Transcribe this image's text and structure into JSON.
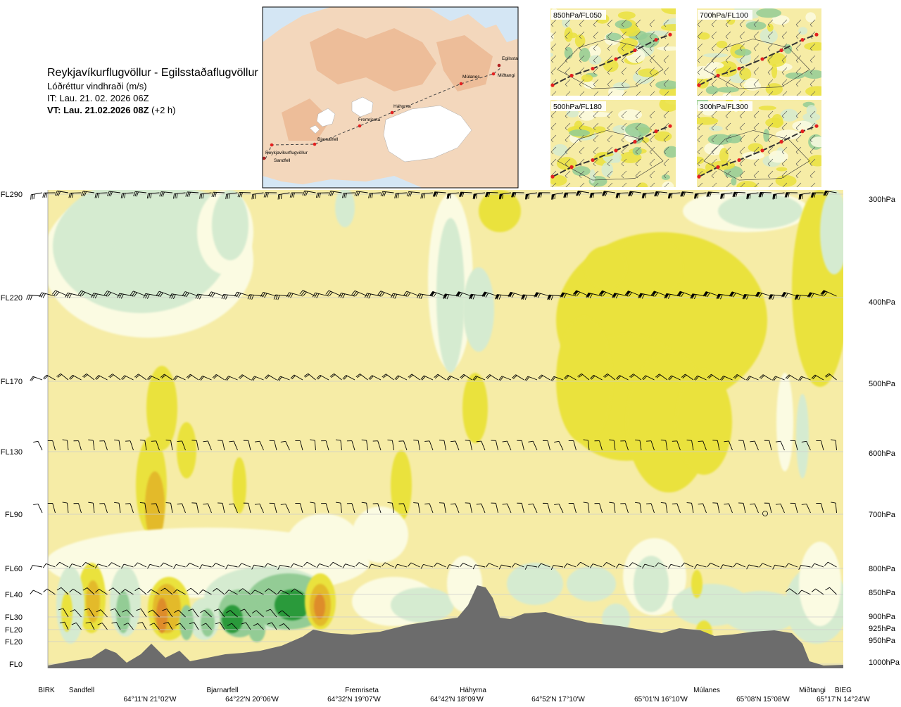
{
  "header": {
    "route_title": "Reykjavíkurflugvöllur - Egilsstaðaflugvöllur",
    "variable": "Lóðréttur vindhraði (m/s)",
    "issue_time": "IT: Lau. 21. 02. 2026 06Z",
    "valid_time_bold": "VT: Lau. 21.02.2026 08Z",
    "valid_time_offset": "(+2 h)"
  },
  "overview_map": {
    "waypoints": [
      {
        "name": "Reykjavíkurflugvöllur"
      },
      {
        "name": "Sandfell"
      },
      {
        "name": "Bjarnarfell"
      },
      {
        "name": "Fremriseta"
      },
      {
        "name": "Háhyrna"
      },
      {
        "name": "Múlanes"
      },
      {
        "name": "Egilsstaðaflugvöllur"
      },
      {
        "name": "Miðtangi"
      }
    ],
    "colors": {
      "sea": "#d4e6f4",
      "land": "#f3d7bc",
      "highland": "#e8a87c",
      "glacier": "#ffffff",
      "route": "#444444",
      "waypoint": "#e32020"
    }
  },
  "inset_maps": [
    {
      "label": "850hPa/FL050"
    },
    {
      "label": "700hPa/FL100"
    },
    {
      "label": "500hPa/FL180"
    },
    {
      "label": "300hPa/FL300"
    }
  ],
  "chart_data": {
    "type": "heatmap",
    "title": "Lóðréttur vindhraði (m/s)",
    "y_levels_left": [
      "FL290",
      "FL220",
      "FL170",
      "FL130",
      "FL90",
      "FL60",
      "FL40",
      "FL30",
      "FL20",
      "FL20",
      "FL0"
    ],
    "y_levels_right": [
      "300hPa",
      "400hPa",
      "500hPa",
      "600hPa",
      "700hPa",
      "800hPa",
      "850hPa",
      "900hPa",
      "925hPa",
      "950hPa",
      "1000hPa"
    ],
    "x_waypoints": [
      "BIRK",
      "Sandfell",
      "Bjarnarfell",
      "Fremriseta",
      "Háhyrna",
      "Múlanes",
      "Miðtangi",
      "BIEG"
    ],
    "x_coordinates": [
      "64°11'N 21°02'W",
      "64°22'N 20°06'W",
      "64°32'N 19°07'W",
      "64°42'N 18°09'W",
      "64°52'N 17°10'W",
      "65°01'N 16°10'W",
      "65°08'N 15°08'W",
      "65°17'N 14°24'W"
    ],
    "colors": {
      "background": "#f6eca6",
      "weak_up": "#eae23e",
      "moderate_up": "#e3ba2a",
      "strong_up": "#de8c2c",
      "weak_down_light": "#fbfbe2",
      "weak_down": "#d5ebd0",
      "moderate_down": "#93cc95",
      "strong_down": "#2b9a3a",
      "terrain": "#6c6c6c",
      "level_lines": "#cccccc"
    }
  }
}
